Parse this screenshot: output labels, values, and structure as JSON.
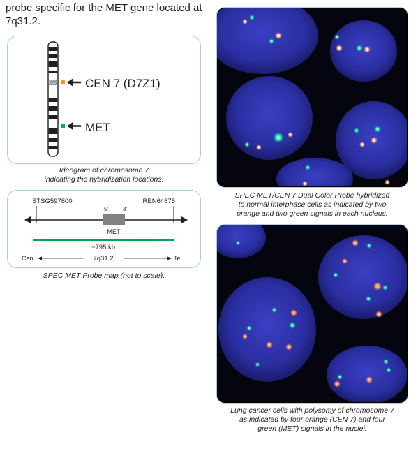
{
  "intro": {
    "text": "probe specific for the MET gene located at 7q31.2."
  },
  "ideogram": {
    "label_cen": "CEN 7 (D7Z1)",
    "label_met": "MET",
    "caption_line1": "Ideogram of chromosome 7",
    "caption_line2": "indicating the hybridization locations.",
    "color_cen": "#f7941d",
    "color_met": "#00a99d"
  },
  "probe_map": {
    "left_marker": "STSG597800",
    "right_marker": "REN64875",
    "five_prime": "5'",
    "three_prime": "3'",
    "gene": "MET",
    "size": "~795 kb",
    "cen": "Cen",
    "band": "7q31.2",
    "tel": "Tel",
    "caption": "SPEC MET Probe map (not to scale).",
    "probe_color": "#00a651"
  },
  "photo_normal": {
    "caption_line1": "SPEC MET/CEN 7 Dual Color Probe hybridized",
    "caption_line2": "to normal interphase cells as indicated by two",
    "caption_line3": "orange and two green signals in each nucleus."
  },
  "photo_polysomy": {
    "caption_line1": "Lung cancer cells with polysomy of chromosome 7",
    "caption_line2": "as indicated by four orange (CEN 7) and four",
    "caption_line3": "green (MET) signals in the nuclei."
  }
}
